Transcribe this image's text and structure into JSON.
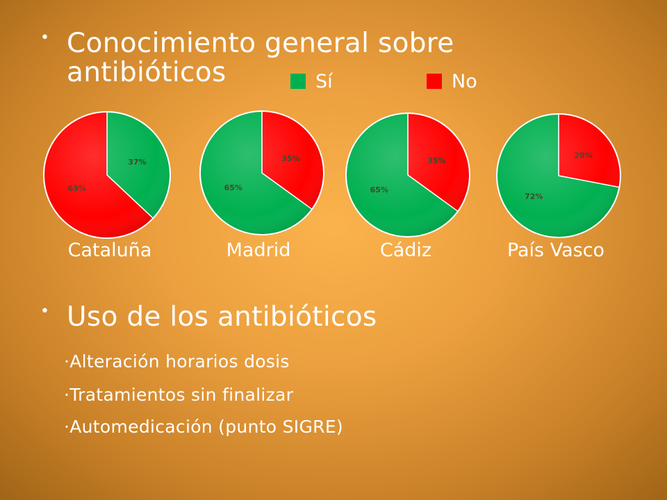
{
  "section1": {
    "bullet": "•",
    "title_line1": "Conocimiento general sobre",
    "title_line2": "antibióticos"
  },
  "legend": [
    {
      "label": "Sí",
      "color": "#00b050"
    },
    {
      "label": "No",
      "color": "#ff0000"
    }
  ],
  "chart_data": [
    {
      "type": "pie",
      "title": "Cataluña",
      "categories": [
        "Sí",
        "No"
      ],
      "values": [
        37,
        63
      ],
      "labels": [
        "37%",
        "63%"
      ],
      "colors": [
        "#00b050",
        "#ff0000"
      ]
    },
    {
      "type": "pie",
      "title": "Madrid",
      "categories": [
        "Sí",
        "No"
      ],
      "values": [
        65,
        35
      ],
      "labels": [
        "65%",
        "35%"
      ],
      "colors": [
        "#00b050",
        "#ff0000"
      ]
    },
    {
      "type": "pie",
      "title": "Cádiz",
      "categories": [
        "Sí",
        "No"
      ],
      "values": [
        65,
        35
      ],
      "labels": [
        "65%",
        "35%"
      ],
      "colors": [
        "#00b050",
        "#ff0000"
      ]
    },
    {
      "type": "pie",
      "title": "País Vasco",
      "categories": [
        "Sí",
        "No"
      ],
      "values": [
        72,
        28
      ],
      "labels": [
        "72%",
        "28%"
      ],
      "colors": [
        "#00b050",
        "#ff0000"
      ]
    }
  ],
  "section2": {
    "bullet": "•",
    "title": "Uso de los antibióticos",
    "items": [
      "·Alteración horarios dosis",
      "·Tratamientos sin finalizar",
      "·Automedicación (punto SIGRE)"
    ]
  }
}
